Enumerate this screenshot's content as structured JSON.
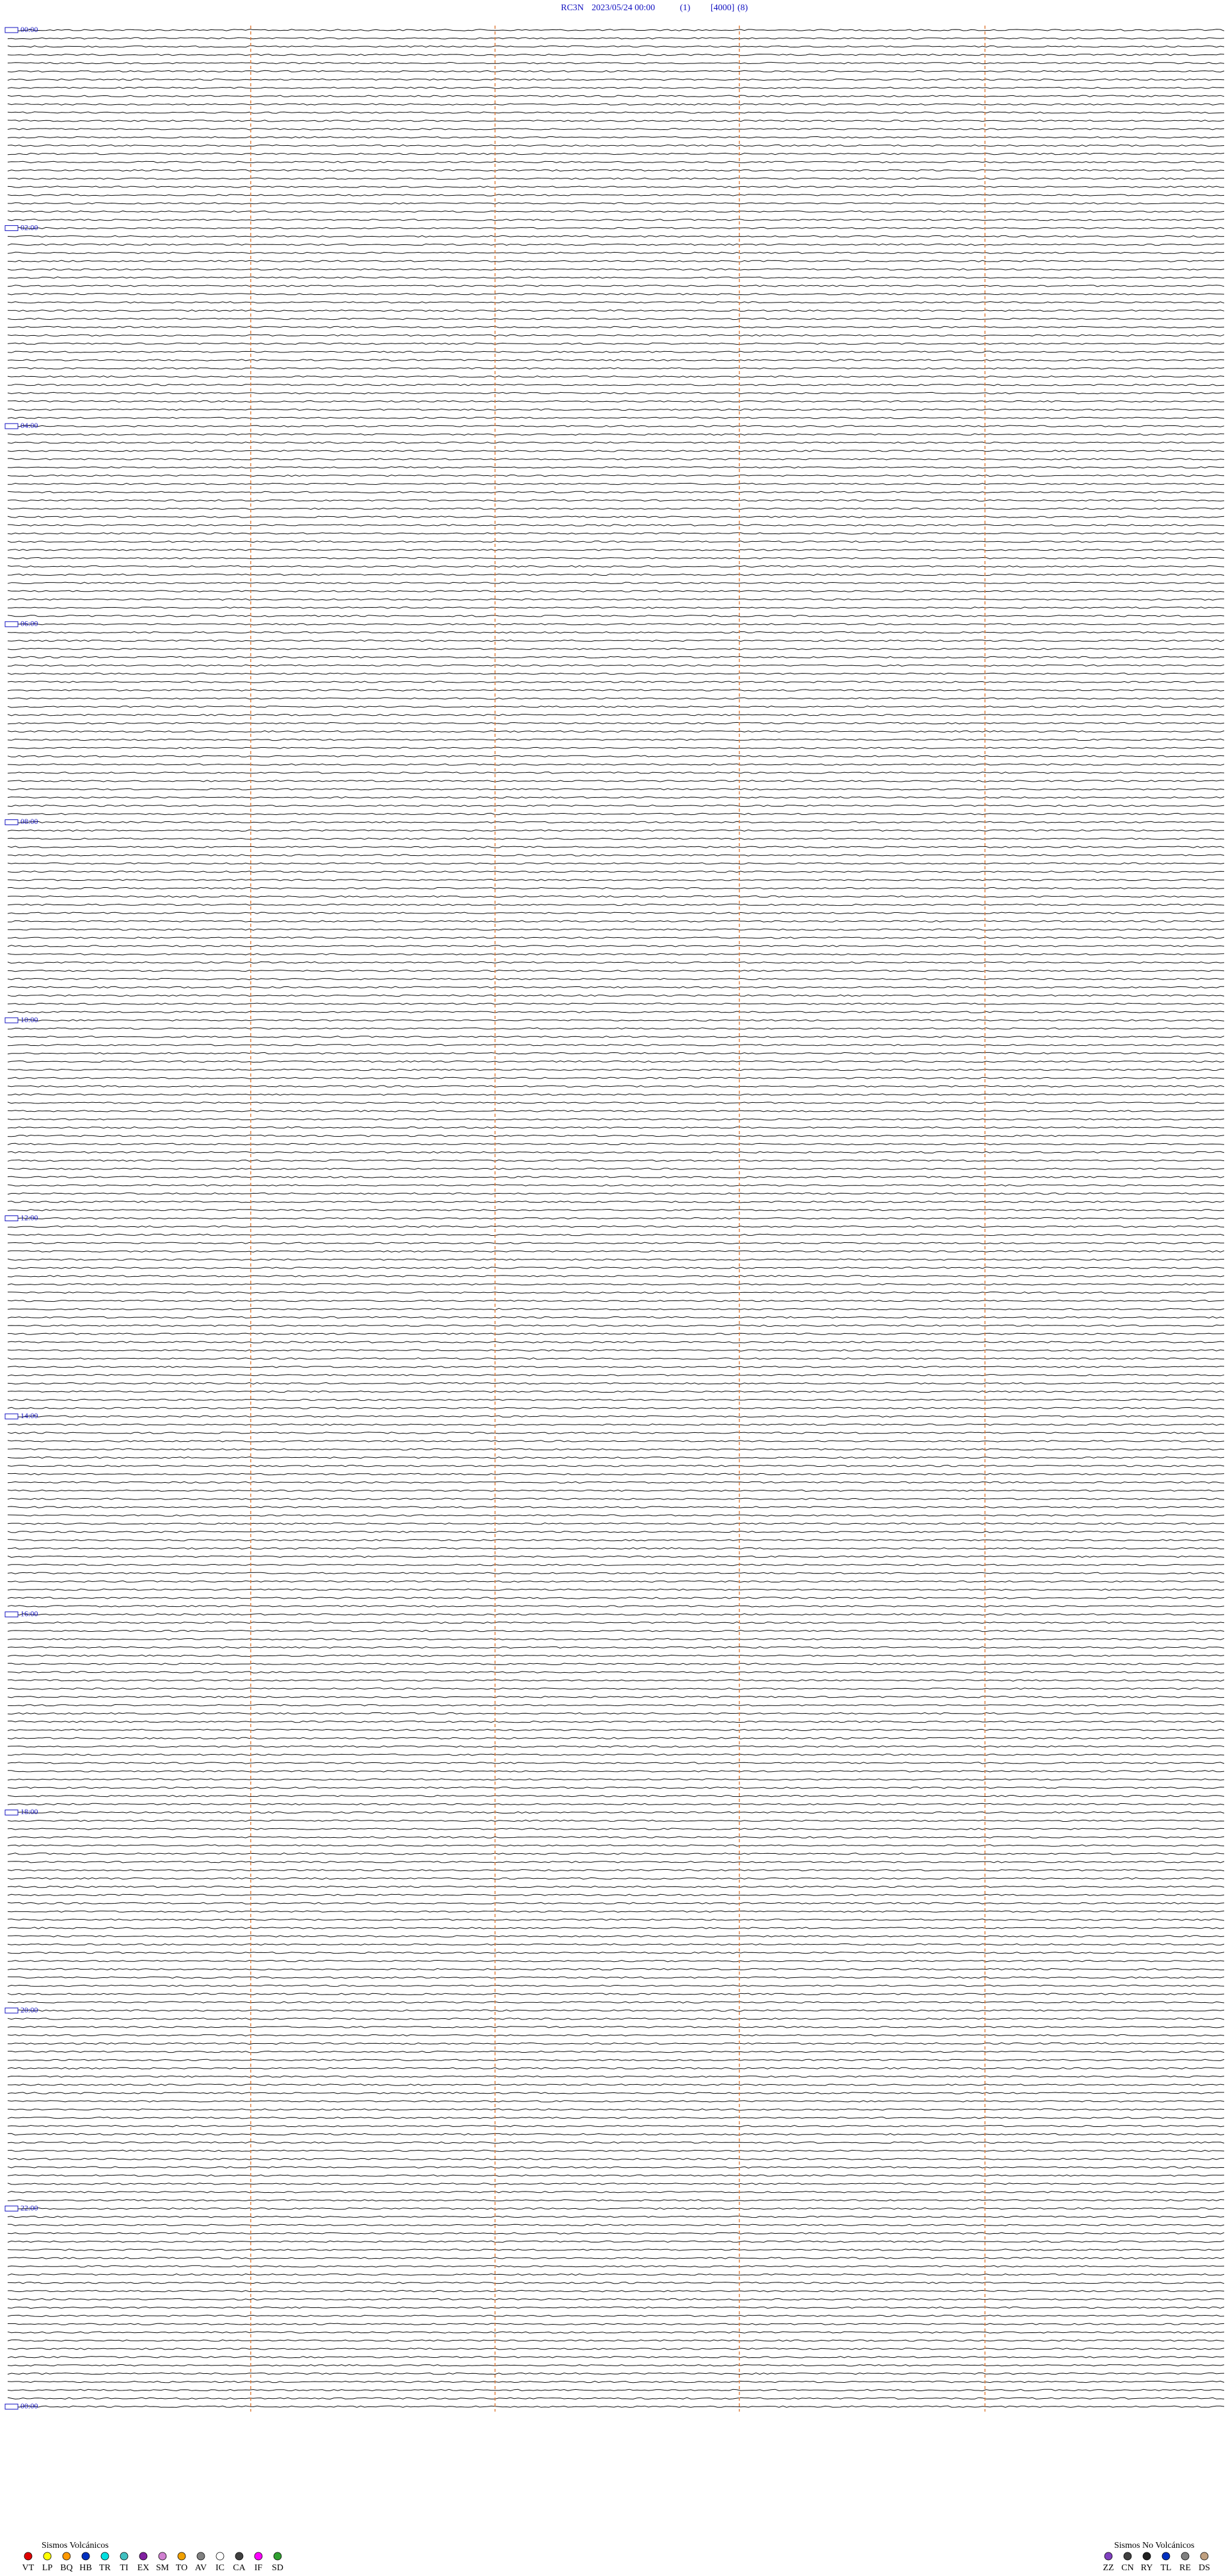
{
  "header": {
    "station": "RC3N",
    "datetime": "2023/05/24 00:00",
    "field1": "(1)",
    "field2": "[4000]",
    "field3": "(8)"
  },
  "hour_labels": [
    "00:00",
    "02:00",
    "04:00",
    "06:00",
    "08:00",
    "10:00",
    "12:00",
    "14:00",
    "16:00",
    "18:00",
    "20:00",
    "22:00",
    "00:00"
  ],
  "legend": {
    "volcanic": {
      "title": "Sismos Volcánicos",
      "items": [
        {
          "code": "VT",
          "color": "#e00000"
        },
        {
          "code": "LP",
          "color": "#ffff00"
        },
        {
          "code": "BQ",
          "color": "#ff9900"
        },
        {
          "code": "HB",
          "color": "#0030c0"
        },
        {
          "code": "TR",
          "color": "#00e0e0"
        },
        {
          "code": "TI",
          "color": "#40c0c0"
        },
        {
          "code": "EX",
          "color": "#8020a0"
        },
        {
          "code": "SM",
          "color": "#d080d0"
        },
        {
          "code": "TO",
          "color": "#f0a000"
        },
        {
          "code": "AV",
          "color": "#808080"
        },
        {
          "code": "IC",
          "color": "#ffffff"
        },
        {
          "code": "CA",
          "color": "#404040"
        },
        {
          "code": "IF",
          "color": "#ff00ff"
        },
        {
          "code": "SD",
          "color": "#30a030"
        }
      ]
    },
    "non_volcanic": {
      "title": "Sismos No Volcánicos",
      "items": [
        {
          "code": "ZZ",
          "color": "#8040c0"
        },
        {
          "code": "CN",
          "color": "#404040"
        },
        {
          "code": "RY",
          "color": "#202020"
        },
        {
          "code": "TL",
          "color": "#0030c0"
        },
        {
          "code": "RE",
          "color": "#808080"
        },
        {
          "code": "DS",
          "color": "#c0a080"
        }
      ]
    }
  }
}
